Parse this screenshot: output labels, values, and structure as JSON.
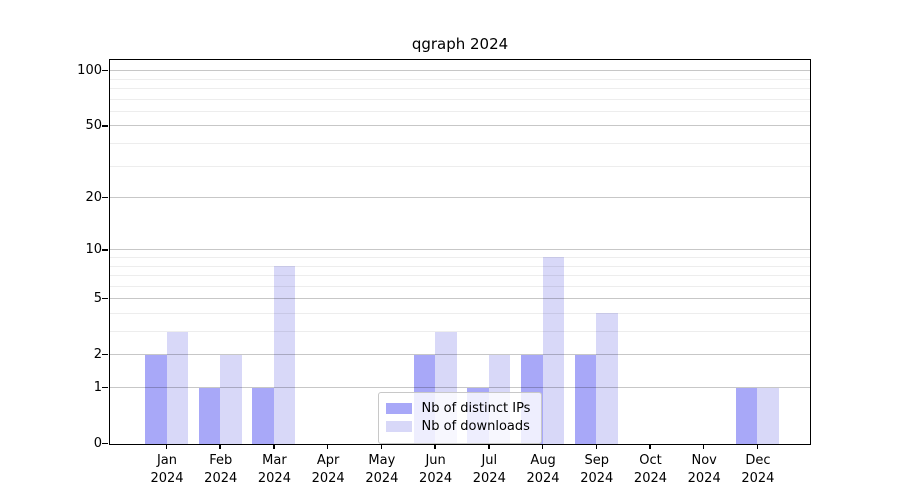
{
  "chart_data": {
    "type": "bar",
    "title": "qgraph 2024",
    "categories": [
      "Jan",
      "Feb",
      "Mar",
      "Apr",
      "May",
      "Jun",
      "Jul",
      "Aug",
      "Sep",
      "Oct",
      "Nov",
      "Dec"
    ],
    "category_year": "2024",
    "series": [
      {
        "name": "Nb of distinct IPs",
        "color": "#a8a8f8",
        "values": [
          2,
          1,
          1,
          0,
          0,
          2,
          1,
          2,
          2,
          0,
          0,
          1
        ]
      },
      {
        "name": "Nb of downloads",
        "color": "#d8d8f8",
        "values": [
          3,
          2,
          8,
          0,
          0,
          3,
          2,
          9,
          4,
          0,
          0,
          1
        ]
      }
    ],
    "xlabel": "",
    "ylabel": "",
    "yaxis": {
      "scale": "symlog",
      "tick_values": [
        0,
        1,
        2,
        5,
        10,
        20,
        50,
        100
      ],
      "tick_labels": [
        "0",
        "1",
        "2",
        "5",
        "10",
        "20",
        "50",
        "100"
      ],
      "minor_gridline_values": [
        3,
        4,
        6,
        7,
        8,
        9,
        30,
        40,
        60,
        70,
        80,
        90
      ],
      "ylim_top_approx": 115
    },
    "legend": {
      "position": "lower center"
    },
    "grid": {
      "major_color": "rgba(0,0,0,0.22)",
      "minor_color": "rgba(0,0,0,0.07)",
      "drawn_over_bars": true
    },
    "colors": {
      "spine": "#000000",
      "text": "#000000",
      "legend_border": "#c8c8c8",
      "legend_background": "rgba(255,255,255,0.8)",
      "background": "#ffffff"
    }
  }
}
